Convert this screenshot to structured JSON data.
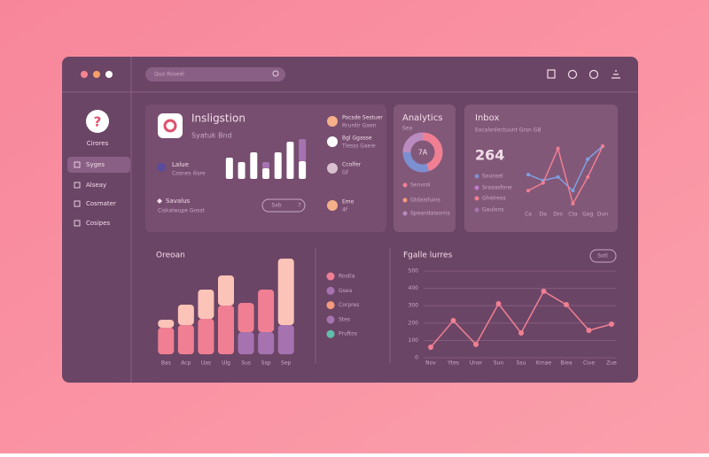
{
  "window": {
    "search": "Quo Roseel"
  },
  "sidebar": {
    "icon": "?",
    "title": "Cirores",
    "menu": [
      "Syges",
      "Alseay",
      "Cosmater",
      "Cosipes"
    ]
  },
  "card": {
    "title": "Insligstion",
    "subtitle": "Syatuk Bnd",
    "stat1": {
      "label": "Lalue",
      "sub": "Cosnes ilisre"
    },
    "stat2": {
      "label": "Savalus",
      "sub": "Ciskalwupe Gosst"
    },
    "button": "Sxb",
    "button_count": "7",
    "chart": {
      "type": "bar",
      "stacked": true,
      "ylim": [
        0,
        50
      ],
      "series": [
        {
          "color": "#ffffff",
          "values": [
            24,
            19,
            30,
            12,
            30,
            42,
            20
          ]
        },
        {
          "color": "#a673b0",
          "values": [
            0,
            0,
            0,
            7,
            0,
            0,
            25
          ]
        }
      ]
    }
  },
  "contacts": [
    {
      "name": "Pocsde Sestuer",
      "detail": "Rrurdir Gaen"
    },
    {
      "name": "Bgl Ggasse",
      "detail": "Tlesss Gaeie"
    },
    {
      "name": "Ccolfer",
      "detail": "Gf"
    },
    {
      "name": "Emo",
      "detail": "4f"
    }
  ],
  "analytics": {
    "title": "Analytics",
    "subtitle": "Sea",
    "center": "7A",
    "chart": {
      "type": "pie",
      "values": [
        45,
        30,
        25
      ],
      "colors": [
        "#f07f93",
        "#7c8fd0",
        "#b98bbf"
      ]
    },
    "legend": [
      {
        "label": "Senvrol",
        "color": "#f07f93"
      },
      {
        "label": "Gtdaisfuins",
        "color": "#f59a7a"
      },
      {
        "label": "Speanitaisorris",
        "color": "#b98bbf"
      }
    ]
  },
  "inbox": {
    "title": "Inbox",
    "subtitle": "Eocalsnlectuunt Grsn GB",
    "value": "264",
    "legend": [
      {
        "label": "Sounsel",
        "color": "#7c8fd0"
      },
      {
        "label": "Sraaasfone",
        "color": "#c07ad0"
      },
      {
        "label": "Ghelreos",
        "color": "#f07f93"
      },
      {
        "label": "Gaulons",
        "color": "#a673b0"
      }
    ],
    "chart": {
      "type": "line",
      "categories": [
        "Ca",
        "Da",
        "Dro",
        "Cta",
        "Gag",
        "Dun"
      ],
      "ylim": [
        0,
        100
      ],
      "series": [
        {
          "color": "#7fa0e0",
          "values": [
            52,
            42,
            48,
            25,
            78,
            100
          ]
        },
        {
          "color": "#f07f93",
          "values": [
            25,
            38,
            96,
            3,
            48,
            100
          ]
        }
      ]
    }
  },
  "overview": {
    "title": "Oreoan",
    "chart": {
      "type": "bar",
      "stacked": true,
      "ylim": [
        0,
        110
      ],
      "categories": [
        "Bas",
        "Acp",
        "Uas",
        "Ulg",
        "Sus",
        "Ssp",
        "Sep"
      ],
      "series": [
        {
          "colors": [
            "#f07f93",
            "#f07f93",
            "#f07f93",
            "#f07f93",
            "#a673b0",
            "#a673b0",
            "#a673b0"
          ],
          "values": [
            30,
            33,
            40,
            55,
            25,
            25,
            33
          ]
        },
        {
          "colors": [
            "#fcc3b8",
            "#fcc3b8",
            "#fcc3b8",
            "#fcc3b8",
            "#f07f93",
            "#f07f93",
            "#fcc3b8"
          ],
          "values": [
            9,
            23,
            33,
            34,
            33,
            48,
            75
          ]
        }
      ]
    },
    "legend": [
      {
        "label": "Rostla",
        "color": "#f07f93"
      },
      {
        "label": "Gsea",
        "color": "#a673b0"
      },
      {
        "label": "Corpres",
        "color": "#f59a7a"
      },
      {
        "label": "Stes",
        "color": "#a673b0"
      },
      {
        "label": "Pruftos",
        "color": "#5fbfa8"
      }
    ]
  },
  "figure": {
    "title": "Fgalle lurres",
    "button": "Sotl",
    "chart": {
      "type": "line",
      "grid": true,
      "categories": [
        "Nov",
        "Ytes",
        "Unar",
        "Sun",
        "Ssu",
        "Kmae",
        "Biea",
        "Cive",
        "Zue"
      ],
      "ylim": [
        0,
        500
      ],
      "yticks": [
        0,
        100,
        200,
        300,
        400,
        500
      ],
      "series": [
        {
          "color": "#f07f93",
          "values": [
            61,
            214,
            77,
            311,
            143,
            383,
            306,
            158,
            194
          ]
        }
      ]
    }
  }
}
